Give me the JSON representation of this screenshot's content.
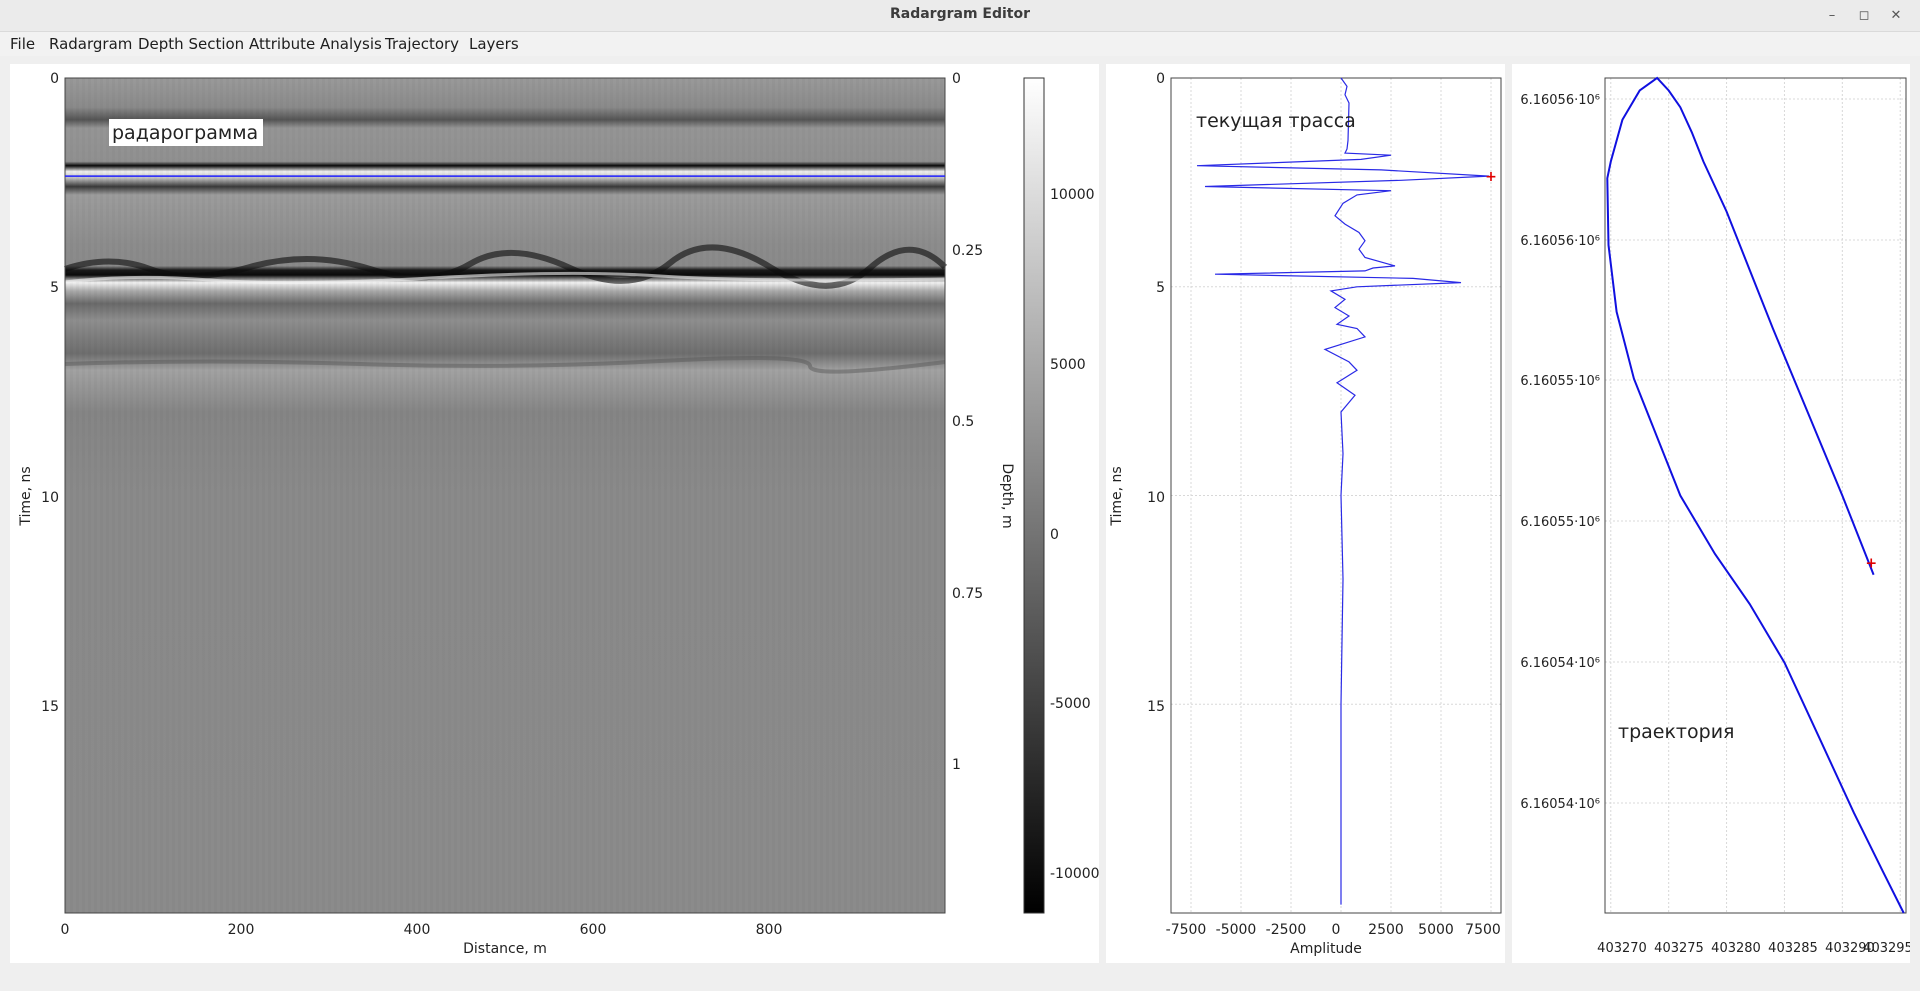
{
  "window": {
    "title": "Radargram Editor",
    "controls": [
      "–",
      "◻",
      "✕"
    ]
  },
  "menu": [
    "File",
    "Radargram",
    "Depth Section",
    "Attribute Analysis",
    "Trajectory",
    "Layers"
  ],
  "radargram": {
    "label": "радарограмма",
    "xlabel": "Distance, m",
    "ylabel": "Time, ns",
    "y2label": "Depth, m",
    "x_ticks": [
      "0",
      "200",
      "400",
      "600",
      "800"
    ],
    "y_ticks": [
      "0",
      "5",
      "10",
      "15"
    ],
    "depth_ticks": [
      "0",
      "0.25",
      "0.5",
      "0.75",
      "1"
    ],
    "colorbar_ticks": [
      "10000",
      "5000",
      "0",
      "-5000",
      "-10000"
    ],
    "cursor_time_ns": 2.35
  },
  "trace_plot": {
    "label": "текущая трасса",
    "xlabel": "Amplitude",
    "ylabel": "Time, ns",
    "x_ticks": [
      "-7500",
      "-5000",
      "-2500",
      "0",
      "2500",
      "5000",
      "7500"
    ],
    "y_ticks": [
      "0",
      "5",
      "10",
      "15"
    ]
  },
  "trajectory_plot": {
    "label": "траектория",
    "x_ticks": [
      "403270",
      "403275",
      "403280",
      "403285",
      "403290",
      "403295"
    ],
    "y_ticks": [
      "6.16056·10⁶",
      "6.16056·10⁶",
      "6.16055·10⁶",
      "6.16055·10⁶",
      "6.16054·10⁶",
      "6.16054·10⁶"
    ]
  },
  "chart_data": [
    {
      "type": "heatmap",
      "title": "",
      "xlabel": "Distance, m",
      "ylabel": "Time, ns",
      "xlim": [
        0,
        1000
      ],
      "ylim": [
        0,
        20
      ],
      "y2lim": [
        0,
        1.2
      ],
      "colorbar_range": [
        -11000,
        13000
      ],
      "reflectors_ns": [
        1.2,
        2.1,
        2.6,
        4.7,
        6.7
      ]
    },
    {
      "type": "line",
      "title": "",
      "xlabel": "Amplitude",
      "ylabel": "Time, ns",
      "xlim": [
        -8500,
        8000
      ],
      "ylim": [
        0,
        20
      ],
      "grid": true,
      "x": [
        0,
        300,
        200,
        300,
        400,
        350,
        300,
        200,
        2500,
        1000,
        -7200,
        2000,
        7400,
        3000,
        -6800,
        2500,
        800,
        100,
        -300,
        200,
        900,
        1200,
        900,
        1200,
        2700,
        1600,
        1200,
        -6300,
        3600,
        6000,
        800,
        -500,
        200,
        -300,
        400,
        -200,
        800,
        1200,
        -800,
        400,
        800,
        -200,
        700,
        0,
        100,
        0,
        100,
        0,
        0
      ],
      "y": [
        0,
        0.2,
        0.4,
        0.5,
        0.6,
        1.5,
        1.7,
        1.8,
        1.85,
        1.95,
        2.1,
        2.2,
        2.35,
        2.45,
        2.6,
        2.7,
        2.8,
        3.0,
        3.3,
        3.5,
        3.7,
        3.9,
        4.1,
        4.3,
        4.5,
        4.55,
        4.62,
        4.7,
        4.8,
        4.9,
        5.0,
        5.1,
        5.3,
        5.5,
        5.7,
        5.9,
        6.0,
        6.2,
        6.5,
        6.8,
        7.0,
        7.3,
        7.6,
        8.0,
        9.0,
        10.0,
        12.0,
        15.0,
        19.8
      ],
      "cursor": [
        7500,
        2.35
      ]
    },
    {
      "type": "line",
      "title": "",
      "xlabel": "",
      "ylabel": "",
      "xlim": [
        403269.5,
        403295.5
      ],
      "ylim": [
        0,
        1
      ],
      "grid": true,
      "x": [
        403292.7,
        403290,
        403287,
        403284,
        403282,
        403280,
        403278,
        403277,
        403276,
        403275,
        403274,
        403272.5,
        403271,
        403270,
        403269.7,
        403269.8,
        403270.5,
        403272,
        403274,
        403276,
        403279,
        403282,
        403285,
        403288,
        403291,
        403293.5,
        403295.3
      ],
      "y": [
        0.405,
        0.5,
        0.6,
        0.7,
        0.77,
        0.84,
        0.9,
        0.935,
        0.965,
        0.985,
        1.0,
        0.985,
        0.95,
        0.9,
        0.88,
        0.8,
        0.72,
        0.64,
        0.57,
        0.5,
        0.43,
        0.37,
        0.3,
        0.21,
        0.12,
        0.05,
        0.0
      ],
      "cursor": [
        403292.5,
        0.42
      ]
    }
  ]
}
